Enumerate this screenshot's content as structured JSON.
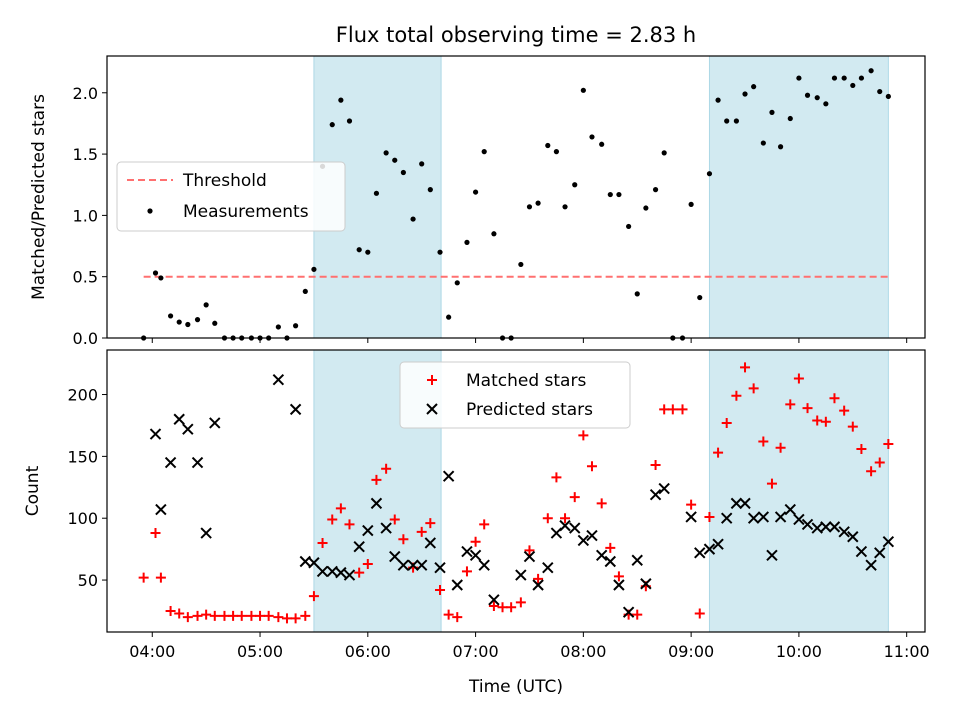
{
  "chart_data": {
    "type": "scatter",
    "title": "Flux total observing time = 2.83 h",
    "xlabel": "Time (UTC)",
    "x_unit": "hours UTC",
    "xlim": [
      3.58,
      11.17
    ],
    "xticks": [
      "04:00",
      "05:00",
      "06:00",
      "07:00",
      "08:00",
      "09:00",
      "10:00",
      "11:00"
    ],
    "highlight_color": "#add8e6",
    "observing_intervals": [
      [
        5.5,
        6.68
      ],
      [
        9.17,
        10.83
      ]
    ],
    "panels": [
      {
        "ylabel": "Matched/Predicted stars",
        "ylim": [
          0,
          2.3
        ],
        "yticks": [
          "0.0",
          "0.5",
          "1.0",
          "1.5",
          "2.0"
        ],
        "legend_position": "center-left",
        "legend": [
          {
            "label": "Threshold",
            "marker": "dashed-line",
            "color": "#ff7070"
          },
          {
            "label": "Measurements",
            "marker": "dot",
            "color": "#000000"
          }
        ],
        "threshold": {
          "value": 0.5,
          "x_range": [
            3.92,
            10.83
          ],
          "color": "#ff7070"
        },
        "measurements": [
          [
            3.92,
            0.0
          ],
          [
            4.03,
            0.53
          ],
          [
            4.08,
            0.49
          ],
          [
            4.17,
            0.18
          ],
          [
            4.25,
            0.13
          ],
          [
            4.33,
            0.11
          ],
          [
            4.42,
            0.15
          ],
          [
            4.5,
            0.27
          ],
          [
            4.58,
            0.12
          ],
          [
            4.67,
            0.0
          ],
          [
            4.75,
            0.0
          ],
          [
            4.83,
            0.0
          ],
          [
            4.92,
            0.0
          ],
          [
            5.0,
            0.0
          ],
          [
            5.08,
            0.0
          ],
          [
            5.17,
            0.09
          ],
          [
            5.25,
            0.0
          ],
          [
            5.33,
            0.1
          ],
          [
            5.42,
            0.38
          ],
          [
            5.5,
            0.56
          ],
          [
            5.58,
            1.4
          ],
          [
            5.67,
            1.74
          ],
          [
            5.75,
            1.94
          ],
          [
            5.83,
            1.77
          ],
          [
            5.92,
            0.72
          ],
          [
            6.0,
            0.7
          ],
          [
            6.08,
            1.18
          ],
          [
            6.17,
            1.51
          ],
          [
            6.25,
            1.45
          ],
          [
            6.33,
            1.35
          ],
          [
            6.42,
            0.97
          ],
          [
            6.5,
            1.42
          ],
          [
            6.58,
            1.21
          ],
          [
            6.67,
            0.7
          ],
          [
            6.75,
            0.17
          ],
          [
            6.83,
            0.45
          ],
          [
            6.92,
            0.78
          ],
          [
            7.0,
            1.19
          ],
          [
            7.08,
            1.52
          ],
          [
            7.17,
            0.85
          ],
          [
            7.25,
            0.0
          ],
          [
            7.33,
            0.0
          ],
          [
            7.42,
            0.6
          ],
          [
            7.5,
            1.07
          ],
          [
            7.58,
            1.1
          ],
          [
            7.67,
            1.57
          ],
          [
            7.75,
            1.52
          ],
          [
            7.83,
            1.07
          ],
          [
            7.92,
            1.25
          ],
          [
            8.0,
            2.02
          ],
          [
            8.08,
            1.64
          ],
          [
            8.17,
            1.58
          ],
          [
            8.25,
            1.17
          ],
          [
            8.33,
            1.17
          ],
          [
            8.42,
            0.91
          ],
          [
            8.5,
            0.36
          ],
          [
            8.58,
            1.06
          ],
          [
            8.67,
            1.21
          ],
          [
            8.75,
            1.51
          ],
          [
            8.83,
            0.0
          ],
          [
            8.92,
            0.0
          ],
          [
            9.0,
            1.09
          ],
          [
            9.08,
            0.33
          ],
          [
            9.17,
            1.34
          ],
          [
            9.25,
            1.94
          ],
          [
            9.33,
            1.77
          ],
          [
            9.42,
            1.77
          ],
          [
            9.5,
            1.99
          ],
          [
            9.58,
            2.05
          ],
          [
            9.67,
            1.59
          ],
          [
            9.75,
            1.84
          ],
          [
            9.83,
            1.56
          ],
          [
            9.92,
            1.79
          ],
          [
            10.0,
            2.12
          ],
          [
            10.08,
            1.98
          ],
          [
            10.17,
            1.96
          ],
          [
            10.25,
            1.91
          ],
          [
            10.33,
            2.12
          ],
          [
            10.42,
            2.12
          ],
          [
            10.5,
            2.06
          ],
          [
            10.58,
            2.12
          ],
          [
            10.67,
            2.18
          ],
          [
            10.75,
            2.01
          ],
          [
            10.83,
            1.97
          ]
        ]
      },
      {
        "ylabel": "Count",
        "ylim": [
          8,
          236
        ],
        "yticks": [
          "50",
          "100",
          "150",
          "200"
        ],
        "legend_position": "upper-center",
        "legend": [
          {
            "label": "Matched stars",
            "marker": "plus",
            "color": "#ff0000"
          },
          {
            "label": "Predicted stars",
            "marker": "x",
            "color": "#000000"
          }
        ],
        "series": [
          {
            "name": "Matched stars",
            "marker": "plus",
            "color": "#ff0000",
            "points": [
              [
                3.92,
                52
              ],
              [
                4.03,
                88
              ],
              [
                4.08,
                52
              ],
              [
                4.17,
                25
              ],
              [
                4.25,
                23
              ],
              [
                4.33,
                20
              ],
              [
                4.42,
                21
              ],
              [
                4.5,
                22
              ],
              [
                4.58,
                21
              ],
              [
                4.67,
                21
              ],
              [
                4.75,
                21
              ],
              [
                4.83,
                21
              ],
              [
                4.92,
                21
              ],
              [
                5.0,
                21
              ],
              [
                5.08,
                21
              ],
              [
                5.17,
                20
              ],
              [
                5.25,
                19
              ],
              [
                5.33,
                19
              ],
              [
                5.42,
                21
              ],
              [
                5.5,
                37
              ],
              [
                5.58,
                80
              ],
              [
                5.67,
                99
              ],
              [
                5.75,
                108
              ],
              [
                5.83,
                95
              ],
              [
                5.92,
                56
              ],
              [
                6.0,
                63
              ],
              [
                6.08,
                131
              ],
              [
                6.17,
                140
              ],
              [
                6.25,
                99
              ],
              [
                6.33,
                83
              ],
              [
                6.42,
                60
              ],
              [
                6.5,
                89
              ],
              [
                6.58,
                96
              ],
              [
                6.67,
                42
              ],
              [
                6.75,
                22
              ],
              [
                6.83,
                20
              ],
              [
                6.92,
                57
              ],
              [
                7.0,
                81
              ],
              [
                7.08,
                95
              ],
              [
                7.17,
                29
              ],
              [
                7.25,
                28
              ],
              [
                7.33,
                28
              ],
              [
                7.42,
                32
              ],
              [
                7.5,
                74
              ],
              [
                7.58,
                51
              ],
              [
                7.67,
                100
              ],
              [
                7.75,
                133
              ],
              [
                7.83,
                100
              ],
              [
                7.92,
                117
              ],
              [
                8.0,
                167
              ],
              [
                8.08,
                142
              ],
              [
                8.17,
                112
              ],
              [
                8.25,
                76
              ],
              [
                8.33,
                53
              ],
              [
                8.42,
                22
              ],
              [
                8.5,
                22
              ],
              [
                8.58,
                45
              ],
              [
                8.67,
                143
              ],
              [
                8.75,
                188
              ],
              [
                8.83,
                188
              ],
              [
                8.92,
                188
              ],
              [
                9.0,
                111
              ],
              [
                9.08,
                23
              ],
              [
                9.17,
                101
              ],
              [
                9.25,
                153
              ],
              [
                9.33,
                177
              ],
              [
                9.42,
                199
              ],
              [
                9.5,
                222
              ],
              [
                9.58,
                205
              ],
              [
                9.67,
                162
              ],
              [
                9.75,
                128
              ],
              [
                9.83,
                157
              ],
              [
                9.92,
                192
              ],
              [
                10.0,
                213
              ],
              [
                10.08,
                189
              ],
              [
                10.17,
                179
              ],
              [
                10.25,
                178
              ],
              [
                10.33,
                197
              ],
              [
                10.42,
                187
              ],
              [
                10.5,
                174
              ],
              [
                10.58,
                156
              ],
              [
                10.67,
                138
              ],
              [
                10.75,
                145
              ],
              [
                10.83,
                160
              ]
            ]
          },
          {
            "name": "Predicted stars",
            "marker": "x",
            "color": "#000000",
            "points": [
              [
                4.03,
                168
              ],
              [
                4.08,
                107
              ],
              [
                4.17,
                145
              ],
              [
                4.25,
                180
              ],
              [
                4.33,
                172
              ],
              [
                4.42,
                145
              ],
              [
                4.5,
                88
              ],
              [
                4.58,
                177
              ],
              [
                5.17,
                212
              ],
              [
                5.33,
                188
              ],
              [
                5.42,
                65
              ],
              [
                5.5,
                64
              ],
              [
                5.58,
                57
              ],
              [
                5.67,
                57
              ],
              [
                5.75,
                56
              ],
              [
                5.83,
                54
              ],
              [
                5.92,
                77
              ],
              [
                6.0,
                90
              ],
              [
                6.08,
                112
              ],
              [
                6.17,
                92
              ],
              [
                6.25,
                69
              ],
              [
                6.33,
                62
              ],
              [
                6.42,
                62
              ],
              [
                6.5,
                62
              ],
              [
                6.58,
                80
              ],
              [
                6.67,
                60
              ],
              [
                6.75,
                134
              ],
              [
                6.83,
                46
              ],
              [
                6.92,
                73
              ],
              [
                7.0,
                70
              ],
              [
                7.08,
                62
              ],
              [
                7.17,
                34
              ],
              [
                7.42,
                54
              ],
              [
                7.5,
                69
              ],
              [
                7.58,
                46
              ],
              [
                7.67,
                60
              ],
              [
                7.75,
                88
              ],
              [
                7.83,
                94
              ],
              [
                7.92,
                92
              ],
              [
                8.0,
                82
              ],
              [
                8.08,
                86
              ],
              [
                8.17,
                70
              ],
              [
                8.25,
                65
              ],
              [
                8.33,
                46
              ],
              [
                8.42,
                24
              ],
              [
                8.5,
                66
              ],
              [
                8.58,
                47
              ],
              [
                8.67,
                119
              ],
              [
                8.75,
                124
              ],
              [
                9.0,
                101
              ],
              [
                9.08,
                72
              ],
              [
                9.17,
                75
              ],
              [
                9.25,
                79
              ],
              [
                9.33,
                100
              ],
              [
                9.42,
                112
              ],
              [
                9.5,
                112
              ],
              [
                9.58,
                100
              ],
              [
                9.67,
                101
              ],
              [
                9.75,
                70
              ],
              [
                9.83,
                101
              ],
              [
                9.92,
                107
              ],
              [
                10.0,
                99
              ],
              [
                10.08,
                95
              ],
              [
                10.17,
                92
              ],
              [
                10.25,
                93
              ],
              [
                10.33,
                93
              ],
              [
                10.42,
                89
              ],
              [
                10.5,
                85
              ],
              [
                10.58,
                73
              ],
              [
                10.67,
                62
              ],
              [
                10.75,
                72
              ],
              [
                10.83,
                81
              ]
            ]
          }
        ]
      }
    ]
  }
}
